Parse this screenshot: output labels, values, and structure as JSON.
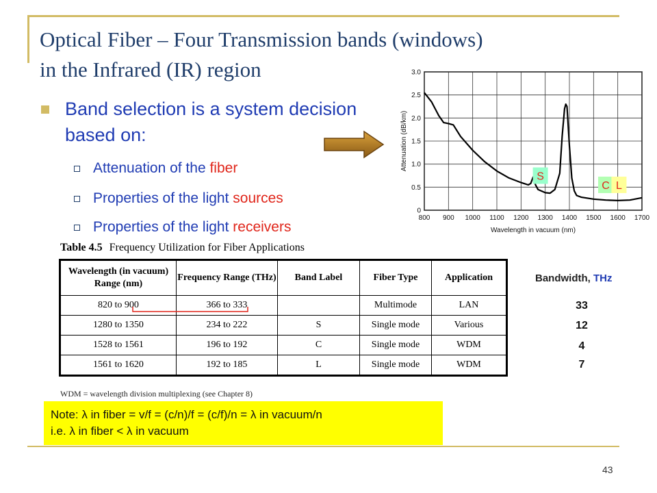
{
  "slide": {
    "title_line1": "Optical Fiber – Four Transmission bands (windows)",
    "title_line2": "in the Infrared (IR) region",
    "bullet": {
      "text": "Band selection is a system decision based on:",
      "subitems": [
        {
          "prefix": "Attenuation of the ",
          "highlight": "fiber"
        },
        {
          "prefix": "Properties of the light ",
          "highlight": "sources"
        },
        {
          "prefix": "Properties of the light ",
          "highlight": "receivers"
        }
      ]
    },
    "page_number": "43"
  },
  "chart_data": {
    "type": "line",
    "ylabel": "Attenuation (dB/km)",
    "xlabel": "Wavelength in vacuum (nm)",
    "xlim": [
      800,
      1700
    ],
    "ylim": [
      0,
      3.0
    ],
    "xticks": [
      "800",
      "900",
      "1000",
      "1100",
      "1200",
      "1300",
      "1400",
      "1500",
      "1600",
      "1700"
    ],
    "yticks": [
      "0",
      "0.5",
      "1.0",
      "1.5",
      "2.0",
      "2.5",
      "3.0"
    ],
    "grid": true,
    "series": [
      {
        "x": [
          800,
          830,
          860,
          880,
          900,
          920,
          950,
          1000,
          1050,
          1100,
          1150,
          1200,
          1230,
          1240,
          1250,
          1260,
          1270,
          1300,
          1320,
          1340,
          1360,
          1370,
          1380,
          1385,
          1390,
          1400,
          1410,
          1420,
          1430,
          1450,
          1500,
          1550,
          1600,
          1650,
          1700
        ],
        "y": [
          2.55,
          2.35,
          2.05,
          1.9,
          1.88,
          1.85,
          1.6,
          1.3,
          1.05,
          0.85,
          0.7,
          0.6,
          0.55,
          0.58,
          0.72,
          0.55,
          0.45,
          0.38,
          0.37,
          0.45,
          0.8,
          1.6,
          2.2,
          2.3,
          2.25,
          1.4,
          0.7,
          0.42,
          0.32,
          0.28,
          0.24,
          0.22,
          0.21,
          0.22,
          0.27
        ]
      }
    ],
    "band_labels": [
      {
        "label": "S",
        "x": 1280,
        "y": 0.75,
        "color": "#99ffcc"
      },
      {
        "label": "C",
        "x": 1550,
        "y": 0.55,
        "color": "#b3ffb3"
      },
      {
        "label": "L",
        "x": 1605,
        "y": 0.55,
        "color": "#ffff99"
      }
    ]
  },
  "table": {
    "caption_number": "Table 4.5",
    "caption_text": "Frequency Utilization for Fiber Applications",
    "headers": [
      "Wavelength (in vacuum) Range (nm)",
      "Frequency Range (THz)",
      "Band Label",
      "Fiber Type",
      "Application"
    ],
    "rows": [
      [
        "820 to 900",
        "366 to 333",
        "",
        "Multimode",
        "LAN"
      ],
      [
        "1280 to 1350",
        "234 to 222",
        "S",
        "Single mode",
        "Various"
      ],
      [
        "1528 to 1561",
        "196 to 192",
        "C",
        "Single mode",
        "WDM"
      ],
      [
        "1561 to 1620",
        "192 to 185",
        "L",
        "Single mode",
        "WDM"
      ]
    ],
    "footnote": "WDM = wavelength division multiplexing (see Chapter 8)"
  },
  "bandwidth": {
    "label": "Bandwidth, ",
    "unit": "THz",
    "values": [
      "33",
      "12",
      "4",
      "7"
    ]
  },
  "note": {
    "line1": "Note: λ in fiber = v/f = (c/n)/f = (c/f)/n = λ in vacuum/n",
    "line2": "i.e. λ in fiber < λ in vacuum"
  },
  "colors": {
    "title": "#1f3d6a",
    "body_text": "#1f3bb3",
    "highlight": "#e0251a",
    "frame": "#d2bb64",
    "note_bg": "#ffff00"
  }
}
